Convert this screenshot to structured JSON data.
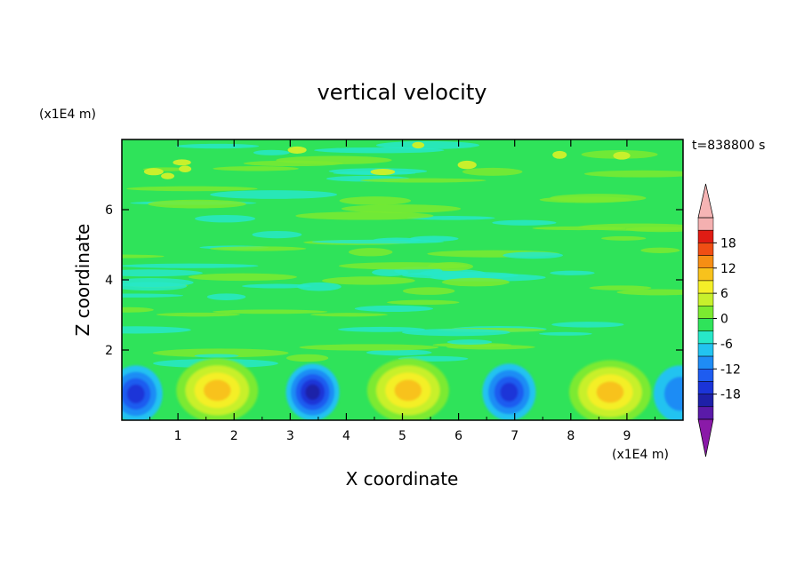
{
  "chart_data": {
    "type": "heatmap",
    "title": "vertical velocity",
    "xlabel": "X coordinate",
    "ylabel": "Z coordinate",
    "x_unit": "(x1E4 m)",
    "y_unit": "(x1E4 m)",
    "time_label": "t=838800 s",
    "xlim": [
      0,
      10
    ],
    "ylim": [
      0,
      8
    ],
    "x_ticks": [
      1,
      2,
      3,
      4,
      5,
      6,
      7,
      8,
      9
    ],
    "y_ticks": [
      2,
      4,
      6
    ],
    "colorbar": {
      "levels": [
        -21,
        -18,
        -15,
        -12,
        -9,
        -6,
        -3,
        0,
        3,
        6,
        9,
        12,
        15,
        18,
        21
      ],
      "tick_labels": [
        18,
        12,
        6,
        0,
        -6,
        -12,
        -18
      ],
      "colors": [
        "#5a1aa8",
        "#1e20a8",
        "#1b34d8",
        "#1e5cf0",
        "#1f8cf5",
        "#22c3f0",
        "#27e8c8",
        "#2fe35a",
        "#7bea30",
        "#c8f02c",
        "#f4ef28",
        "#f8c21c",
        "#f68e14",
        "#f04e14",
        "#e01c14",
        "#f4b0b0"
      ],
      "under_color": "#8a1aa8",
      "over_color": "#f6b4b4"
    },
    "cells": [
      {
        "x": 0.25,
        "z": 0.75,
        "w": -14
      },
      {
        "x": 1.7,
        "z": 0.85,
        "w": 13
      },
      {
        "x": 3.4,
        "z": 0.8,
        "w": -15
      },
      {
        "x": 5.1,
        "z": 0.85,
        "w": 13
      },
      {
        "x": 6.9,
        "z": 0.8,
        "w": -13
      },
      {
        "x": 8.7,
        "z": 0.8,
        "w": 12
      },
      {
        "x": 9.95,
        "z": 0.75,
        "w": -6
      }
    ],
    "background_value": 1
  }
}
